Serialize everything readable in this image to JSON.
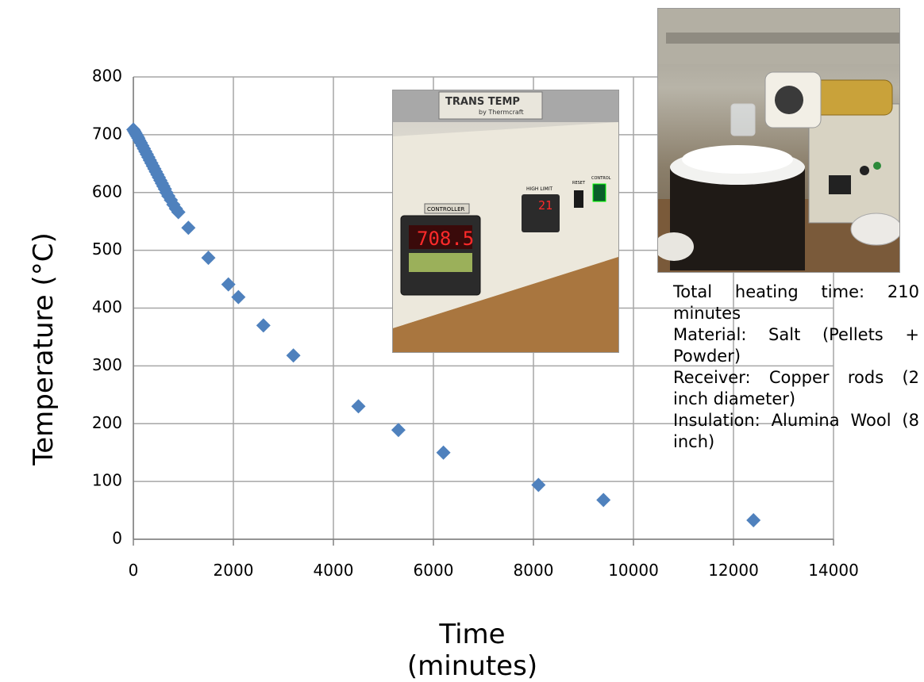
{
  "chart_data": {
    "type": "scatter",
    "xlabel": "Time (minutes)",
    "ylabel": "Temperature (°C)",
    "xlim": [
      0,
      14000
    ],
    "ylim": [
      0,
      800
    ],
    "x_ticks": [
      "0",
      "2000",
      "4000",
      "6000",
      "8000",
      "10000",
      "12000",
      "14000"
    ],
    "y_ticks": [
      "0",
      "100",
      "200",
      "300",
      "400",
      "500",
      "600",
      "700",
      "800"
    ],
    "grid": true,
    "marker": "diamond",
    "color": "#4f81bd",
    "x": [
      0,
      20,
      40,
      60,
      80,
      100,
      120,
      150,
      180,
      210,
      240,
      270,
      300,
      330,
      360,
      390,
      420,
      450,
      480,
      510,
      540,
      570,
      600,
      630,
      660,
      700,
      750,
      800,
      850,
      900,
      1100,
      1500,
      1900,
      2100,
      2600,
      3200,
      4500,
      5300,
      6200,
      8100,
      9400,
      12400
    ],
    "y": [
      709,
      706,
      703,
      700,
      697,
      694,
      690,
      686,
      681,
      676,
      671,
      666,
      661,
      656,
      651,
      646,
      641,
      636,
      631,
      626,
      621,
      616,
      611,
      606,
      600,
      594,
      587,
      579,
      572,
      566,
      539,
      487,
      441,
      419,
      370,
      318,
      230,
      189,
      150,
      94,
      68,
      33
    ]
  },
  "annotation": {
    "lines": [
      "Total heating time: 210 minutes",
      "Material: Salt (Pellets + Powder)",
      "Receiver: Copper rods (2 inch diameter)",
      "Insulation: Alumina Wool (8 inch)"
    ]
  },
  "photo1": {
    "brand_text": "TRANS TEMP",
    "brand_sub": "by Thermcraft",
    "controller_label": "CONTROLLER",
    "controller_readout": "708.5",
    "high_limit_label": "HIGH LIMIT",
    "high_limit_readout": "21",
    "reset_label": "RESET",
    "control_label": "CONTROL"
  }
}
